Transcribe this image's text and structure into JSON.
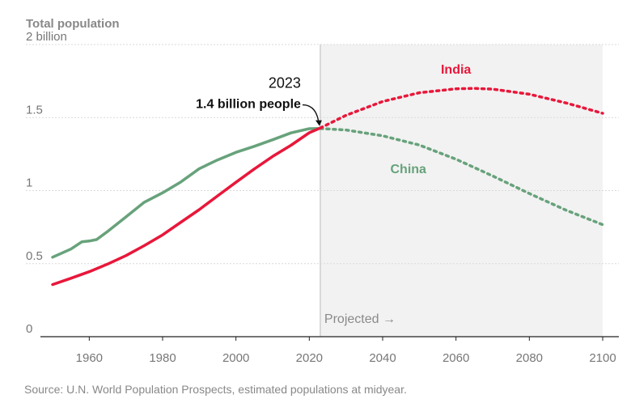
{
  "chart_data": {
    "type": "line",
    "title": "Total population",
    "ylim": [
      0,
      2
    ],
    "xlim": [
      1950,
      2100
    ],
    "y_ticks": [
      {
        "value": 0,
        "label": "0"
      },
      {
        "value": 0.5,
        "label": "0.5"
      },
      {
        "value": 1,
        "label": "1"
      },
      {
        "value": 1.5,
        "label": "1.5"
      },
      {
        "value": 2,
        "label": "2 billion"
      }
    ],
    "x_ticks": [
      {
        "value": 1960,
        "label": "1960"
      },
      {
        "value": 1980,
        "label": "1980"
      },
      {
        "value": 2000,
        "label": "2000"
      },
      {
        "value": 2020,
        "label": "2020"
      },
      {
        "value": 2040,
        "label": "2040"
      },
      {
        "value": 2060,
        "label": "2060"
      },
      {
        "value": 2080,
        "label": "2080"
      },
      {
        "value": 2100,
        "label": "2100"
      }
    ],
    "grid": "horizontal",
    "projection_start": 2023,
    "projection_label": "Projected →",
    "series": [
      {
        "name": "India",
        "color": "#e8173a",
        "label_at": [
          2060,
          1.8
        ],
        "x": [
          1950,
          1955,
          1960,
          1965,
          1970,
          1975,
          1980,
          1985,
          1990,
          1995,
          2000,
          2005,
          2010,
          2015,
          2020,
          2023,
          2030,
          2040,
          2050,
          2060,
          2065,
          2070,
          2080,
          2090,
          2100
        ],
        "values": [
          0.357,
          0.4,
          0.445,
          0.497,
          0.555,
          0.623,
          0.697,
          0.784,
          0.87,
          0.964,
          1.057,
          1.148,
          1.234,
          1.31,
          1.396,
          1.428,
          1.515,
          1.61,
          1.67,
          1.697,
          1.7,
          1.695,
          1.66,
          1.6,
          1.529
        ]
      },
      {
        "name": "China",
        "color": "#67a27b",
        "label_at": [
          2047,
          1.12
        ],
        "x": [
          1950,
          1955,
          1958,
          1960,
          1962,
          1965,
          1970,
          1975,
          1980,
          1985,
          1990,
          1995,
          2000,
          2005,
          2010,
          2015,
          2020,
          2023,
          2030,
          2040,
          2050,
          2060,
          2070,
          2080,
          2090,
          2100
        ],
        "values": [
          0.544,
          0.6,
          0.65,
          0.655,
          0.665,
          0.72,
          0.82,
          0.92,
          0.985,
          1.06,
          1.15,
          1.21,
          1.262,
          1.303,
          1.348,
          1.395,
          1.424,
          1.425,
          1.415,
          1.375,
          1.312,
          1.215,
          1.1,
          0.98,
          0.866,
          0.767
        ]
      }
    ],
    "annotation": {
      "year_label": "2023",
      "value_label": "1.4 billion people",
      "point": [
        2023,
        1.426
      ]
    },
    "source": "Source: U.N. World Population Prospects, estimated populations at midyear."
  }
}
